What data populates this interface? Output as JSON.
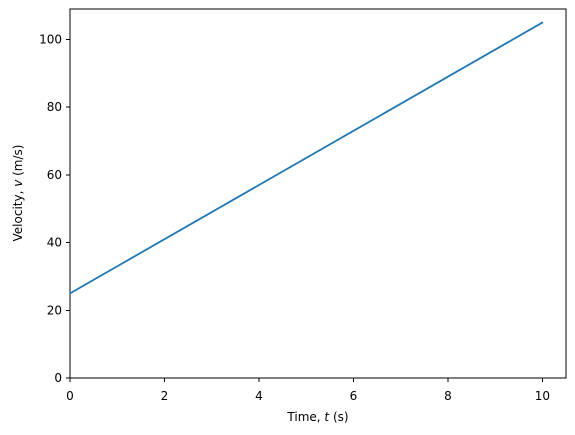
{
  "chart_data": {
    "type": "line",
    "title": "",
    "xlabel": {
      "prefix": "Time, ",
      "symbol": "t",
      "suffix": " (s)"
    },
    "ylabel": {
      "prefix": "Velocity, ",
      "symbol": "v",
      "suffix": " (m/s)"
    },
    "xlim": [
      0,
      10.5
    ],
    "ylim": [
      0,
      109
    ],
    "x_ticks": [
      0,
      2,
      4,
      6,
      8,
      10
    ],
    "y_ticks": [
      0,
      20,
      40,
      60,
      80,
      100
    ],
    "x_tick_labels": [
      "0",
      "2",
      "4",
      "6",
      "8",
      "10"
    ],
    "y_tick_labels": [
      "0",
      "20",
      "40",
      "60",
      "80",
      "100"
    ],
    "grid": false,
    "legend": "none",
    "series": [
      {
        "color": "#1f77b4",
        "x": [
          0,
          10
        ],
        "y": [
          25,
          105
        ]
      }
    ]
  }
}
